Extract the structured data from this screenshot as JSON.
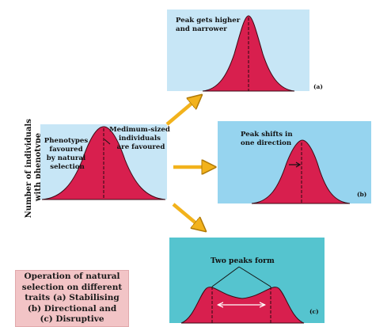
{
  "y_axis_label": [
    "Number of individuals",
    "with phenotype"
  ],
  "original": {
    "label_left": [
      "Phenotypes",
      "favoured",
      "by natural",
      "selection"
    ],
    "label_right": [
      "Medimum-sized",
      "individuals",
      "are favoured"
    ]
  },
  "panel_a": {
    "text": [
      "Peak gets higher",
      "and narrower"
    ],
    "tag": "(a)"
  },
  "panel_b": {
    "text": [
      "Peak shifts in",
      "one direction"
    ],
    "tag": "(b)"
  },
  "panel_c": {
    "text": [
      "Two peaks form"
    ],
    "tag": "(c)"
  },
  "caption": [
    "Operation of natural",
    "selection on different",
    "traits (a) Stabilising",
    "(b) Directional and",
    "(c) Disruptive"
  ],
  "colors": {
    "panel_light": "#c7e6f6",
    "panel_mid": "#96d4ef",
    "panel_teal": "#55c4cf",
    "curve_fill": "#d81f4e",
    "arrow": "#f2b21c",
    "caption_bg": "#f2c4c6"
  }
}
